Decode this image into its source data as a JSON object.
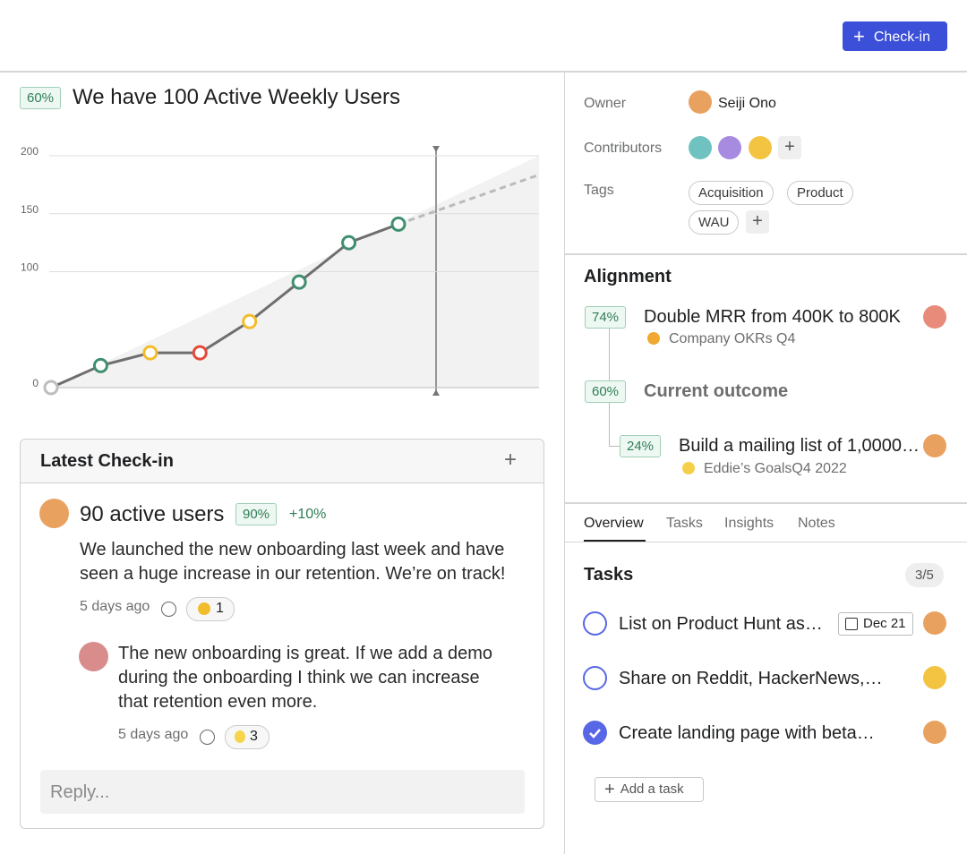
{
  "header": {
    "button": "Check-in"
  },
  "goal": {
    "progress": "60%",
    "title": "We have 100 Active Weekly Users"
  },
  "chart_data": {
    "type": "line",
    "categories": [
      null,
      null,
      null,
      null,
      null,
      null,
      null,
      null
    ],
    "series": [
      {
        "values": [
          0,
          19,
          30,
          30,
          57,
          91,
          125,
          141
        ],
        "color": "#6e6e6e",
        "point_colors": [
          "#bdbdbd",
          "#3f8f6f",
          "#f2bd2c",
          "#e5493a",
          "#f2bd2c",
          "#3f8f6f",
          "#3f8f6f",
          "#3f8f6f"
        ]
      }
    ],
    "ylim": [
      0,
      200
    ],
    "yticks": [
      0,
      100,
      150,
      200
    ],
    "grid": true
  },
  "checkin": {
    "title": "Latest Check-in",
    "headline": "90 active users",
    "progress": "90%",
    "change": "+10%",
    "body": "We launched the new onboarding last week and have seen a huge increase in our retention. We’re on track!",
    "time": "5 days ago",
    "reactions": "1",
    "reply": {
      "body": "The new onboarding is great. If we add a demo during the onboarding I think we can increase that retention even more.",
      "time": "5 days ago",
      "reactions": "3"
    },
    "reply_placeholder": "Reply..."
  },
  "details": {
    "owner_label": "Owner",
    "owner": "Seiji Ono",
    "contributors_label": "Contributors",
    "tags_label": "Tags",
    "tags": [
      "Acquisition",
      "Product",
      "WAU"
    ]
  },
  "alignment": {
    "title": "Alignment",
    "items": [
      {
        "progress": "74%",
        "title": "Double MRR from 400K to 800K",
        "subtitle": "Company OKRs Q4"
      },
      {
        "progress": "60%",
        "title": "Current outcome"
      },
      {
        "progress": "24%",
        "title": "Build a mailing list of 1,0000…",
        "subtitle": "Eddie’s GoalsQ4 2022"
      }
    ]
  },
  "tabs": [
    "Overview",
    "Tasks",
    "Insights",
    "Notes"
  ],
  "tasks": {
    "title": "Tasks",
    "count": "3/5",
    "items": [
      {
        "text": "List on Product Hunt as…",
        "due": "Dec 21",
        "done": false
      },
      {
        "text": "Share on Reddit, HackerNews,…",
        "done": false
      },
      {
        "text": "Create landing page with beta…",
        "done": true
      }
    ],
    "add": "Add a task"
  }
}
